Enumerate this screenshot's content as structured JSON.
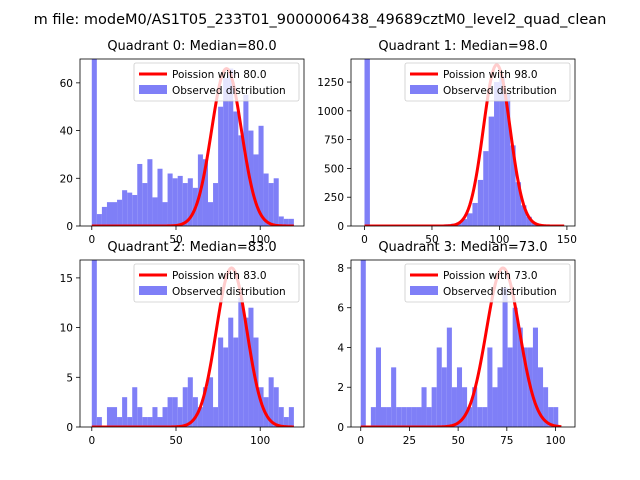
{
  "figure": {
    "suptitle": "m file: modeM0/AS1T05_233T01_9000006438_49689cztM0_level2_quad_clean"
  },
  "colors": {
    "hist": "#7f7ff7",
    "poisson": "#ff0000",
    "axis": "#000000",
    "background": "#ffffff"
  },
  "chart_data": [
    {
      "type": "bar",
      "title": "Quadrant 0: Median=80.0",
      "legend_location": "upper right",
      "legend": {
        "line_label": "Poission with 80.0",
        "hist_label": "Observed distribution"
      },
      "xlim": [
        -7,
        126
      ],
      "ylim": [
        0,
        70
      ],
      "xticks": [
        0,
        50,
        100
      ],
      "yticks": [
        0,
        20,
        40,
        60
      ],
      "bin_width": 3,
      "hist_bins": [
        {
          "x": 0,
          "h": 70
        },
        {
          "x": 3,
          "h": 5
        },
        {
          "x": 6,
          "h": 8
        },
        {
          "x": 9,
          "h": 10
        },
        {
          "x": 12,
          "h": 10
        },
        {
          "x": 15,
          "h": 11
        },
        {
          "x": 18,
          "h": 15
        },
        {
          "x": 21,
          "h": 14
        },
        {
          "x": 24,
          "h": 13
        },
        {
          "x": 27,
          "h": 26
        },
        {
          "x": 30,
          "h": 18
        },
        {
          "x": 33,
          "h": 28
        },
        {
          "x": 36,
          "h": 12
        },
        {
          "x": 39,
          "h": 24
        },
        {
          "x": 42,
          "h": 10
        },
        {
          "x": 45,
          "h": 22
        },
        {
          "x": 48,
          "h": 20
        },
        {
          "x": 51,
          "h": 21
        },
        {
          "x": 54,
          "h": 18
        },
        {
          "x": 57,
          "h": 20
        },
        {
          "x": 60,
          "h": 16
        },
        {
          "x": 63,
          "h": 30
        },
        {
          "x": 66,
          "h": 28
        },
        {
          "x": 69,
          "h": 10
        },
        {
          "x": 72,
          "h": 18
        },
        {
          "x": 75,
          "h": 50
        },
        {
          "x": 78,
          "h": 62
        },
        {
          "x": 81,
          "h": 66
        },
        {
          "x": 84,
          "h": 48
        },
        {
          "x": 87,
          "h": 38
        },
        {
          "x": 90,
          "h": 55
        },
        {
          "x": 93,
          "h": 40
        },
        {
          "x": 96,
          "h": 30
        },
        {
          "x": 99,
          "h": 42
        },
        {
          "x": 102,
          "h": 22
        },
        {
          "x": 105,
          "h": 18
        },
        {
          "x": 108,
          "h": 20
        },
        {
          "x": 111,
          "h": 4
        },
        {
          "x": 114,
          "h": 3
        },
        {
          "x": 117,
          "h": 3
        }
      ],
      "poisson": {
        "mean": 80,
        "peak": 66,
        "sigma": 8.9,
        "x_range": [
          0,
          120
        ]
      }
    },
    {
      "type": "bar",
      "title": "Quadrant 1: Median=98.0",
      "legend_location": "upper right",
      "legend": {
        "line_label": "Poission with 98.0",
        "hist_label": "Observed distribution"
      },
      "xlim": [
        -10,
        156
      ],
      "ylim": [
        0,
        1450
      ],
      "xticks": [
        0,
        50,
        100,
        150
      ],
      "yticks": [
        0,
        250,
        500,
        750,
        1000,
        1250
      ],
      "bin_width": 4,
      "hist_bins": [
        {
          "x": 0,
          "h": 1450
        },
        {
          "x": 52,
          "h": 5
        },
        {
          "x": 56,
          "h": 10
        },
        {
          "x": 60,
          "h": 15
        },
        {
          "x": 64,
          "h": 20
        },
        {
          "x": 68,
          "h": 30
        },
        {
          "x": 72,
          "h": 60
        },
        {
          "x": 76,
          "h": 110
        },
        {
          "x": 80,
          "h": 200
        },
        {
          "x": 84,
          "h": 400
        },
        {
          "x": 88,
          "h": 650
        },
        {
          "x": 92,
          "h": 950
        },
        {
          "x": 96,
          "h": 1250
        },
        {
          "x": 100,
          "h": 1300
        },
        {
          "x": 104,
          "h": 1150
        },
        {
          "x": 108,
          "h": 700
        },
        {
          "x": 112,
          "h": 380
        },
        {
          "x": 116,
          "h": 180
        },
        {
          "x": 120,
          "h": 80
        },
        {
          "x": 124,
          "h": 30
        },
        {
          "x": 128,
          "h": 10
        },
        {
          "x": 132,
          "h": 5
        }
      ],
      "poisson": {
        "mean": 98,
        "peak": 1400,
        "sigma": 9.9,
        "x_range": [
          0,
          148
        ]
      }
    },
    {
      "type": "bar",
      "title": "Quadrant 2: Median=83.0",
      "legend_location": "upper right",
      "legend": {
        "line_label": "Poission with 83.0",
        "hist_label": "Observed distribution"
      },
      "xlim": [
        -7,
        126
      ],
      "ylim": [
        0,
        16.8
      ],
      "xticks": [
        0,
        50,
        100
      ],
      "yticks": [
        0,
        5,
        10,
        15
      ],
      "bin_width": 3,
      "hist_bins": [
        {
          "x": 0,
          "h": 17
        },
        {
          "x": 3,
          "h": 1
        },
        {
          "x": 6,
          "h": 0
        },
        {
          "x": 9,
          "h": 2
        },
        {
          "x": 12,
          "h": 2
        },
        {
          "x": 15,
          "h": 1
        },
        {
          "x": 18,
          "h": 3
        },
        {
          "x": 21,
          "h": 1
        },
        {
          "x": 24,
          "h": 4
        },
        {
          "x": 27,
          "h": 2
        },
        {
          "x": 30,
          "h": 1
        },
        {
          "x": 33,
          "h": 1
        },
        {
          "x": 36,
          "h": 2
        },
        {
          "x": 39,
          "h": 1
        },
        {
          "x": 42,
          "h": 2
        },
        {
          "x": 45,
          "h": 3
        },
        {
          "x": 48,
          "h": 3
        },
        {
          "x": 51,
          "h": 2
        },
        {
          "x": 54,
          "h": 4
        },
        {
          "x": 57,
          "h": 5
        },
        {
          "x": 60,
          "h": 3
        },
        {
          "x": 63,
          "h": 2
        },
        {
          "x": 66,
          "h": 4
        },
        {
          "x": 69,
          "h": 5
        },
        {
          "x": 72,
          "h": 2
        },
        {
          "x": 75,
          "h": 9
        },
        {
          "x": 78,
          "h": 8
        },
        {
          "x": 81,
          "h": 11
        },
        {
          "x": 84,
          "h": 9
        },
        {
          "x": 87,
          "h": 13
        },
        {
          "x": 90,
          "h": 11
        },
        {
          "x": 93,
          "h": 12
        },
        {
          "x": 96,
          "h": 9
        },
        {
          "x": 99,
          "h": 4
        },
        {
          "x": 102,
          "h": 3
        },
        {
          "x": 105,
          "h": 5
        },
        {
          "x": 108,
          "h": 4
        },
        {
          "x": 111,
          "h": 2
        },
        {
          "x": 114,
          "h": 1
        },
        {
          "x": 117,
          "h": 2
        }
      ],
      "poisson": {
        "mean": 83,
        "peak": 16,
        "sigma": 9.1,
        "x_range": [
          0,
          120
        ]
      }
    },
    {
      "type": "bar",
      "title": "Quadrant 3: Median=73.0",
      "legend_location": "upper right",
      "legend": {
        "line_label": "Poission with 73.0",
        "hist_label": "Observed distribution"
      },
      "xlim": [
        -5,
        110
      ],
      "ylim": [
        0,
        8.4
      ],
      "xticks": [
        0,
        25,
        50,
        75,
        100
      ],
      "yticks": [
        0,
        2,
        4,
        6,
        8
      ],
      "bin_width": 2.6,
      "hist_bins": [
        {
          "x": 0,
          "h": 9
        },
        {
          "x": 5.2,
          "h": 1
        },
        {
          "x": 7.8,
          "h": 4
        },
        {
          "x": 10.4,
          "h": 1
        },
        {
          "x": 13,
          "h": 1
        },
        {
          "x": 15.6,
          "h": 3
        },
        {
          "x": 18.2,
          "h": 1
        },
        {
          "x": 20.8,
          "h": 1
        },
        {
          "x": 23.4,
          "h": 1
        },
        {
          "x": 26,
          "h": 1
        },
        {
          "x": 28.6,
          "h": 1
        },
        {
          "x": 31.2,
          "h": 2
        },
        {
          "x": 33.8,
          "h": 1
        },
        {
          "x": 36.4,
          "h": 2
        },
        {
          "x": 39,
          "h": 4
        },
        {
          "x": 41.6,
          "h": 3
        },
        {
          "x": 44.2,
          "h": 5
        },
        {
          "x": 46.8,
          "h": 2
        },
        {
          "x": 49.4,
          "h": 3
        },
        {
          "x": 52,
          "h": 2
        },
        {
          "x": 54.6,
          "h": 1
        },
        {
          "x": 57.2,
          "h": 2
        },
        {
          "x": 59.8,
          "h": 1
        },
        {
          "x": 62.4,
          "h": 1
        },
        {
          "x": 65,
          "h": 4
        },
        {
          "x": 67.6,
          "h": 2
        },
        {
          "x": 70.2,
          "h": 3
        },
        {
          "x": 72.8,
          "h": 7
        },
        {
          "x": 75.4,
          "h": 4
        },
        {
          "x": 78,
          "h": 6
        },
        {
          "x": 80.6,
          "h": 5
        },
        {
          "x": 83.2,
          "h": 4
        },
        {
          "x": 85.8,
          "h": 4
        },
        {
          "x": 88.4,
          "h": 5
        },
        {
          "x": 91,
          "h": 3
        },
        {
          "x": 93.6,
          "h": 2
        },
        {
          "x": 96.2,
          "h": 1
        },
        {
          "x": 98.8,
          "h": 1
        }
      ],
      "poisson": {
        "mean": 73,
        "peak": 8,
        "sigma": 8.5,
        "x_range": [
          0,
          103
        ]
      }
    }
  ]
}
